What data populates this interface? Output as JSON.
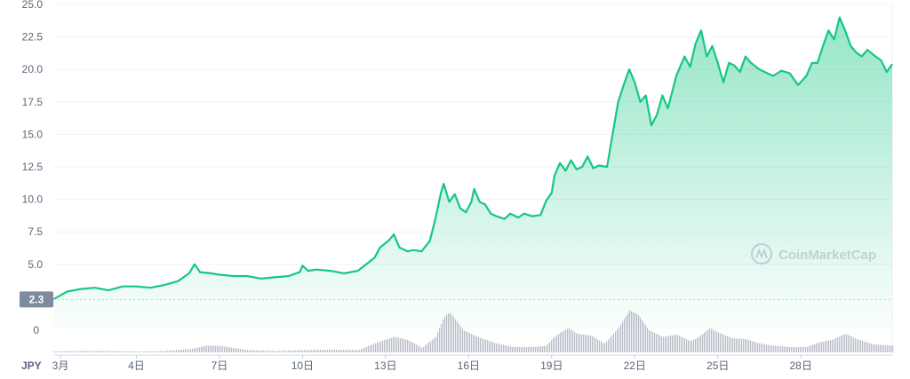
{
  "chart_data": {
    "type": "area",
    "currency_label": "JPY",
    "watermark": "CoinMarketCap",
    "current_price_label": "2.3",
    "ylim": [
      0,
      25
    ],
    "y_ticks": [
      "25.0",
      "22.5",
      "20.0",
      "17.5",
      "15.0",
      "12.5",
      "10.0",
      "7.5",
      "5.0"
    ],
    "volume_zero_label": "0",
    "x_ticks": [
      {
        "label": "3月",
        "day": 1
      },
      {
        "label": "4日",
        "day": 4
      },
      {
        "label": "7日",
        "day": 7
      },
      {
        "label": "10日",
        "day": 10
      },
      {
        "label": "13日",
        "day": 13
      },
      {
        "label": "16日",
        "day": 16
      },
      {
        "label": "19日",
        "day": 19
      },
      {
        "label": "22日",
        "day": 22
      },
      {
        "label": "25日",
        "day": 25
      },
      {
        "label": "28日",
        "day": 28
      }
    ],
    "xlim": [
      1,
      31.3
    ],
    "colors": {
      "line": "#16c784",
      "area_top": "#16c784",
      "volume": "#b9bdc8",
      "grid": "#eff2f5",
      "axis_text": "#58667e",
      "price_tag_bg": "#808a9d"
    },
    "series": [
      {
        "values": [
          [
            1.0,
            2.3
          ],
          [
            1.5,
            2.9
          ],
          [
            2.0,
            3.1
          ],
          [
            2.5,
            3.2
          ],
          [
            3.0,
            3.0
          ],
          [
            3.5,
            3.3
          ],
          [
            4.0,
            3.3
          ],
          [
            4.5,
            3.2
          ],
          [
            5.0,
            3.4
          ],
          [
            5.5,
            3.7
          ],
          [
            5.9,
            4.3
          ],
          [
            6.1,
            5.0
          ],
          [
            6.3,
            4.4
          ],
          [
            6.7,
            4.3
          ],
          [
            7.0,
            4.2
          ],
          [
            7.5,
            4.1
          ],
          [
            8.0,
            4.1
          ],
          [
            8.5,
            3.9
          ],
          [
            9.0,
            4.0
          ],
          [
            9.5,
            4.1
          ],
          [
            9.9,
            4.4
          ],
          [
            10.0,
            4.9
          ],
          [
            10.2,
            4.5
          ],
          [
            10.5,
            4.6
          ],
          [
            11.0,
            4.5
          ],
          [
            11.5,
            4.3
          ],
          [
            12.0,
            4.5
          ],
          [
            12.3,
            5.0
          ],
          [
            12.6,
            5.5
          ],
          [
            12.8,
            6.3
          ],
          [
            13.1,
            6.8
          ],
          [
            13.3,
            7.3
          ],
          [
            13.5,
            6.3
          ],
          [
            13.8,
            6.0
          ],
          [
            14.0,
            6.1
          ],
          [
            14.3,
            6.0
          ],
          [
            14.6,
            6.8
          ],
          [
            14.8,
            8.5
          ],
          [
            15.0,
            10.5
          ],
          [
            15.1,
            11.2
          ],
          [
            15.3,
            9.8
          ],
          [
            15.5,
            10.4
          ],
          [
            15.7,
            9.3
          ],
          [
            15.9,
            9.0
          ],
          [
            16.1,
            9.8
          ],
          [
            16.2,
            10.8
          ],
          [
            16.4,
            9.8
          ],
          [
            16.6,
            9.6
          ],
          [
            16.8,
            8.9
          ],
          [
            17.0,
            8.7
          ],
          [
            17.3,
            8.5
          ],
          [
            17.5,
            8.9
          ],
          [
            17.8,
            8.6
          ],
          [
            18.0,
            8.9
          ],
          [
            18.3,
            8.7
          ],
          [
            18.6,
            8.8
          ],
          [
            18.8,
            9.9
          ],
          [
            19.0,
            10.5
          ],
          [
            19.1,
            11.8
          ],
          [
            19.3,
            12.8
          ],
          [
            19.5,
            12.2
          ],
          [
            19.7,
            13.0
          ],
          [
            19.9,
            12.3
          ],
          [
            20.1,
            12.5
          ],
          [
            20.3,
            13.3
          ],
          [
            20.5,
            12.4
          ],
          [
            20.7,
            12.6
          ],
          [
            21.0,
            12.5
          ],
          [
            21.2,
            15.0
          ],
          [
            21.4,
            17.5
          ],
          [
            21.6,
            18.8
          ],
          [
            21.8,
            20.0
          ],
          [
            22.0,
            19.0
          ],
          [
            22.2,
            17.5
          ],
          [
            22.4,
            18.0
          ],
          [
            22.6,
            15.7
          ],
          [
            22.8,
            16.5
          ],
          [
            23.0,
            18.0
          ],
          [
            23.2,
            17.0
          ],
          [
            23.5,
            19.5
          ],
          [
            23.8,
            21.0
          ],
          [
            24.0,
            20.2
          ],
          [
            24.2,
            22.0
          ],
          [
            24.4,
            23.0
          ],
          [
            24.6,
            21.0
          ],
          [
            24.8,
            21.8
          ],
          [
            25.0,
            20.5
          ],
          [
            25.2,
            19.0
          ],
          [
            25.4,
            20.5
          ],
          [
            25.6,
            20.3
          ],
          [
            25.8,
            19.8
          ],
          [
            26.0,
            21.0
          ],
          [
            26.2,
            20.5
          ],
          [
            26.5,
            20.0
          ],
          [
            26.8,
            19.7
          ],
          [
            27.0,
            19.5
          ],
          [
            27.3,
            19.9
          ],
          [
            27.6,
            19.7
          ],
          [
            27.9,
            18.8
          ],
          [
            28.2,
            19.5
          ],
          [
            28.4,
            20.5
          ],
          [
            28.6,
            20.5
          ],
          [
            28.8,
            21.8
          ],
          [
            29.0,
            23.0
          ],
          [
            29.2,
            22.3
          ],
          [
            29.4,
            24.0
          ],
          [
            29.6,
            23.0
          ],
          [
            29.8,
            21.8
          ],
          [
            30.0,
            21.3
          ],
          [
            30.2,
            21.0
          ],
          [
            30.4,
            21.5
          ],
          [
            30.7,
            21.0
          ],
          [
            30.9,
            20.7
          ],
          [
            31.1,
            19.8
          ],
          [
            31.3,
            20.4
          ]
        ]
      }
    ],
    "volume": [
      [
        1.0,
        0.02
      ],
      [
        2.0,
        0.03
      ],
      [
        3.0,
        0.03
      ],
      [
        4.0,
        0.02
      ],
      [
        5.0,
        0.03
      ],
      [
        6.0,
        0.08
      ],
      [
        6.5,
        0.15
      ],
      [
        7.0,
        0.15
      ],
      [
        7.5,
        0.1
      ],
      [
        8.0,
        0.05
      ],
      [
        9.0,
        0.03
      ],
      [
        10.0,
        0.05
      ],
      [
        11.0,
        0.06
      ],
      [
        12.0,
        0.05
      ],
      [
        12.8,
        0.25
      ],
      [
        13.3,
        0.35
      ],
      [
        13.8,
        0.28
      ],
      [
        14.3,
        0.1
      ],
      [
        14.8,
        0.35
      ],
      [
        15.1,
        0.8
      ],
      [
        15.3,
        0.9
      ],
      [
        15.5,
        0.75
      ],
      [
        15.8,
        0.5
      ],
      [
        16.3,
        0.35
      ],
      [
        17.0,
        0.2
      ],
      [
        17.6,
        0.12
      ],
      [
        18.3,
        0.12
      ],
      [
        18.8,
        0.15
      ],
      [
        19.0,
        0.3
      ],
      [
        19.3,
        0.45
      ],
      [
        19.6,
        0.55
      ],
      [
        19.9,
        0.42
      ],
      [
        20.4,
        0.38
      ],
      [
        20.9,
        0.2
      ],
      [
        21.4,
        0.55
      ],
      [
        21.8,
        0.95
      ],
      [
        22.1,
        0.85
      ],
      [
        22.5,
        0.5
      ],
      [
        23.0,
        0.35
      ],
      [
        23.5,
        0.4
      ],
      [
        24.0,
        0.25
      ],
      [
        24.3,
        0.35
      ],
      [
        24.7,
        0.55
      ],
      [
        25.0,
        0.45
      ],
      [
        25.5,
        0.32
      ],
      [
        26.0,
        0.3
      ],
      [
        26.5,
        0.2
      ],
      [
        27.0,
        0.15
      ],
      [
        27.6,
        0.12
      ],
      [
        28.2,
        0.12
      ],
      [
        28.6,
        0.22
      ],
      [
        29.1,
        0.28
      ],
      [
        29.6,
        0.42
      ],
      [
        30.0,
        0.3
      ],
      [
        30.6,
        0.18
      ],
      [
        31.3,
        0.15
      ]
    ]
  }
}
